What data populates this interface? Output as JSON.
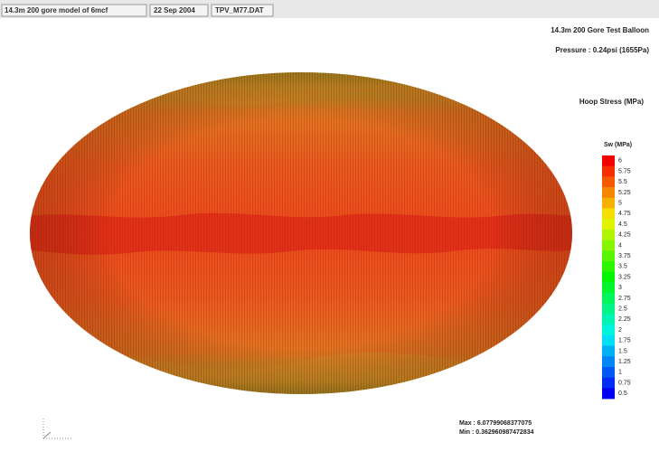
{
  "header": {
    "tabs": [
      "14.3m 200 gore model of 6mcf",
      "22 Sep 2004",
      "TPV_M77.DAT"
    ]
  },
  "title": "14.3m 200 Gore Test Balloon",
  "subtitle": "Pressure : 0.24psi  (1655Pa)",
  "quantity": "Hoop Stress (MPa)",
  "legend": {
    "title": "Sw (MPa)",
    "labels": [
      "6",
      "5.75",
      "5.5",
      "5.25",
      "5",
      "4.75",
      "4.5",
      "4.25",
      "4",
      "3.75",
      "3.5",
      "3.25",
      "3",
      "2.75",
      "2.5",
      "2.25",
      "2",
      "1.75",
      "1.5",
      "1.25",
      "1",
      "0.75",
      "0.5"
    ]
  },
  "stats": {
    "max": "Max : 6.07799068377075",
    "min": "Min : 0.362960987472834"
  }
}
